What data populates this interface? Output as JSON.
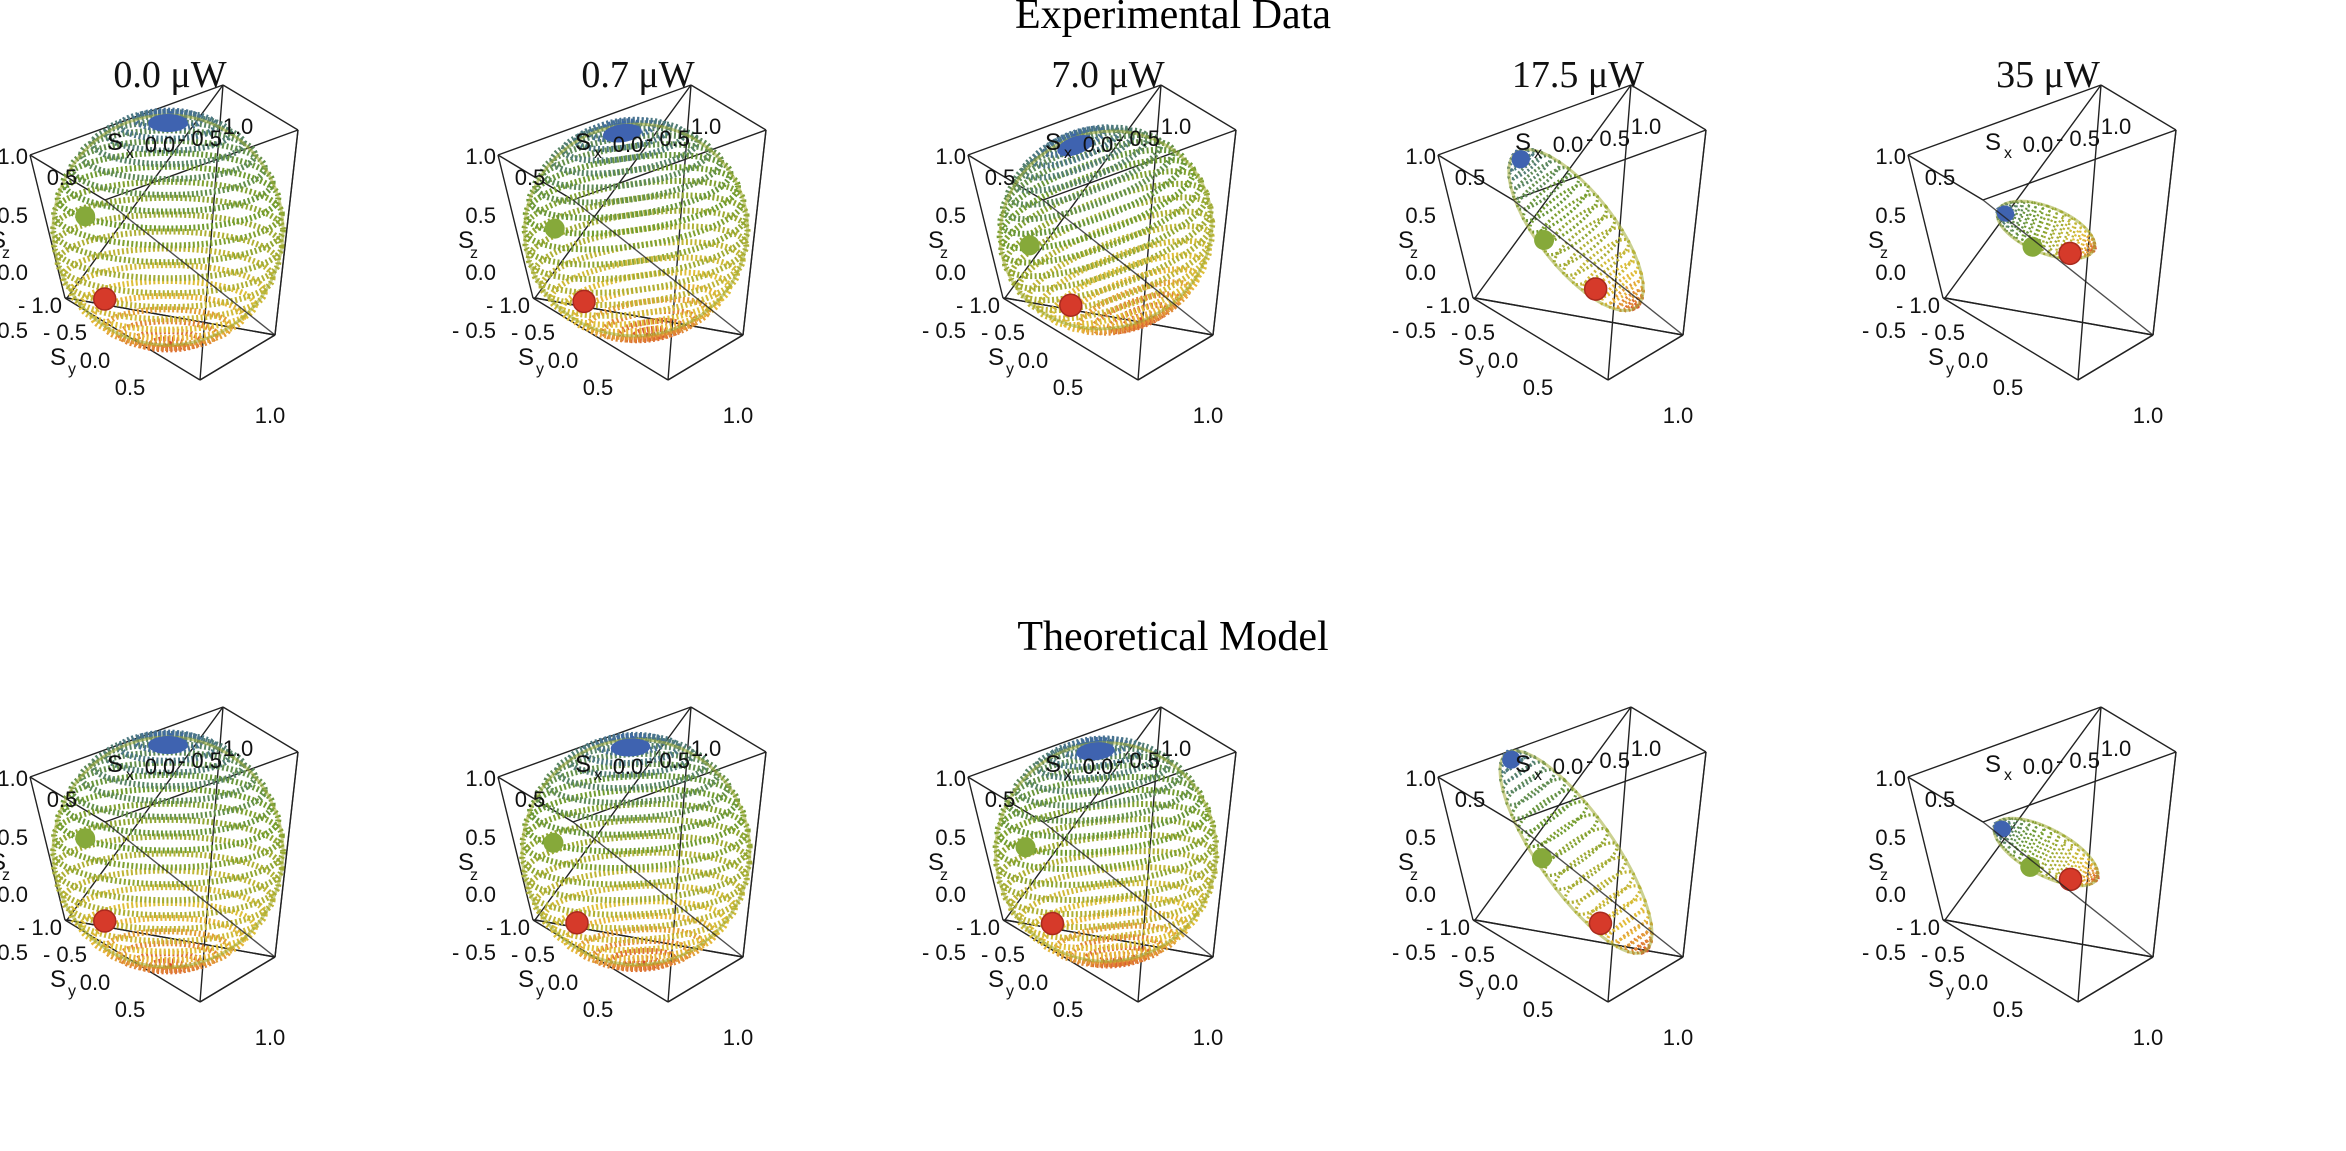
{
  "chart_data": {
    "type": "scatter",
    "description_axes": [
      "S_x",
      "S_y",
      "S_z"
    ],
    "colormap": {
      "top": "#3b66ad",
      "middle": "#6e9b2f",
      "lower": "#e6c23a",
      "bottom": "#d8412e"
    },
    "point_colors": {
      "blue": "#3f63b0",
      "green": "#86a93a",
      "red": "#d63a2a"
    },
    "rows": [
      {
        "title": "Experimental Data",
        "panels": [
          {
            "power_value": "0.0",
            "power_unit": "μW",
            "shape": {
              "rx": 1.0,
              "ry": 1.0,
              "rz": 1.0,
              "tilt_deg": 0
            }
          },
          {
            "power_value": "0.7",
            "power_unit": "μW",
            "shape": {
              "rx": 0.97,
              "ry": 0.97,
              "rz": 0.92,
              "tilt_deg": -8
            }
          },
          {
            "power_value": "7.0",
            "power_unit": "μW",
            "shape": {
              "rx": 0.93,
              "ry": 0.93,
              "rz": 0.85,
              "tilt_deg": -20
            }
          },
          {
            "power_value": "17.5",
            "power_unit": "μW",
            "shape": {
              "rx": 0.33,
              "ry": 0.33,
              "rz": 0.85,
              "tilt_deg": -38
            }
          },
          {
            "power_value": "35",
            "power_unit": "μW",
            "shape": {
              "rx": 0.2,
              "ry": 0.2,
              "rz": 0.45,
              "tilt_deg": -68
            }
          }
        ]
      },
      {
        "title": "Theoretical Model",
        "panels": [
          {
            "power_value": "0.0",
            "power_unit": "μW",
            "shape": {
              "rx": 1.0,
              "ry": 1.0,
              "rz": 1.0,
              "tilt_deg": 0
            }
          },
          {
            "power_value": "0.7",
            "power_unit": "μW",
            "shape": {
              "rx": 0.99,
              "ry": 0.99,
              "rz": 0.98,
              "tilt_deg": -3
            }
          },
          {
            "power_value": "7.0",
            "power_unit": "μW",
            "shape": {
              "rx": 0.96,
              "ry": 0.96,
              "rz": 0.95,
              "tilt_deg": -6
            }
          },
          {
            "power_value": "17.5",
            "power_unit": "μW",
            "shape": {
              "rx": 0.33,
              "ry": 0.33,
              "rz": 1.05,
              "tilt_deg": -35
            }
          },
          {
            "power_value": "35",
            "power_unit": "μW",
            "shape": {
              "rx": 0.2,
              "ry": 0.2,
              "rz": 0.5,
              "tilt_deg": -62
            }
          }
        ]
      }
    ],
    "axes": {
      "sx": {
        "label": "S",
        "subscript": "x",
        "ticks": [
          "- 0.5",
          "0.0",
          "0.5",
          "1.0"
        ],
        "range": [
          -1,
          1
        ]
      },
      "sy": {
        "label": "S",
        "subscript": "y",
        "ticks": [
          "- 1.0",
          "- 0.5",
          "0.0",
          "0.5",
          "1.0"
        ],
        "range": [
          -1,
          1
        ]
      },
      "sz": {
        "label": "S",
        "subscript": "z",
        "ticks": [
          "1.0",
          "0.5",
          "0.0",
          "- 0.5"
        ],
        "range": [
          -1,
          1
        ]
      }
    }
  }
}
